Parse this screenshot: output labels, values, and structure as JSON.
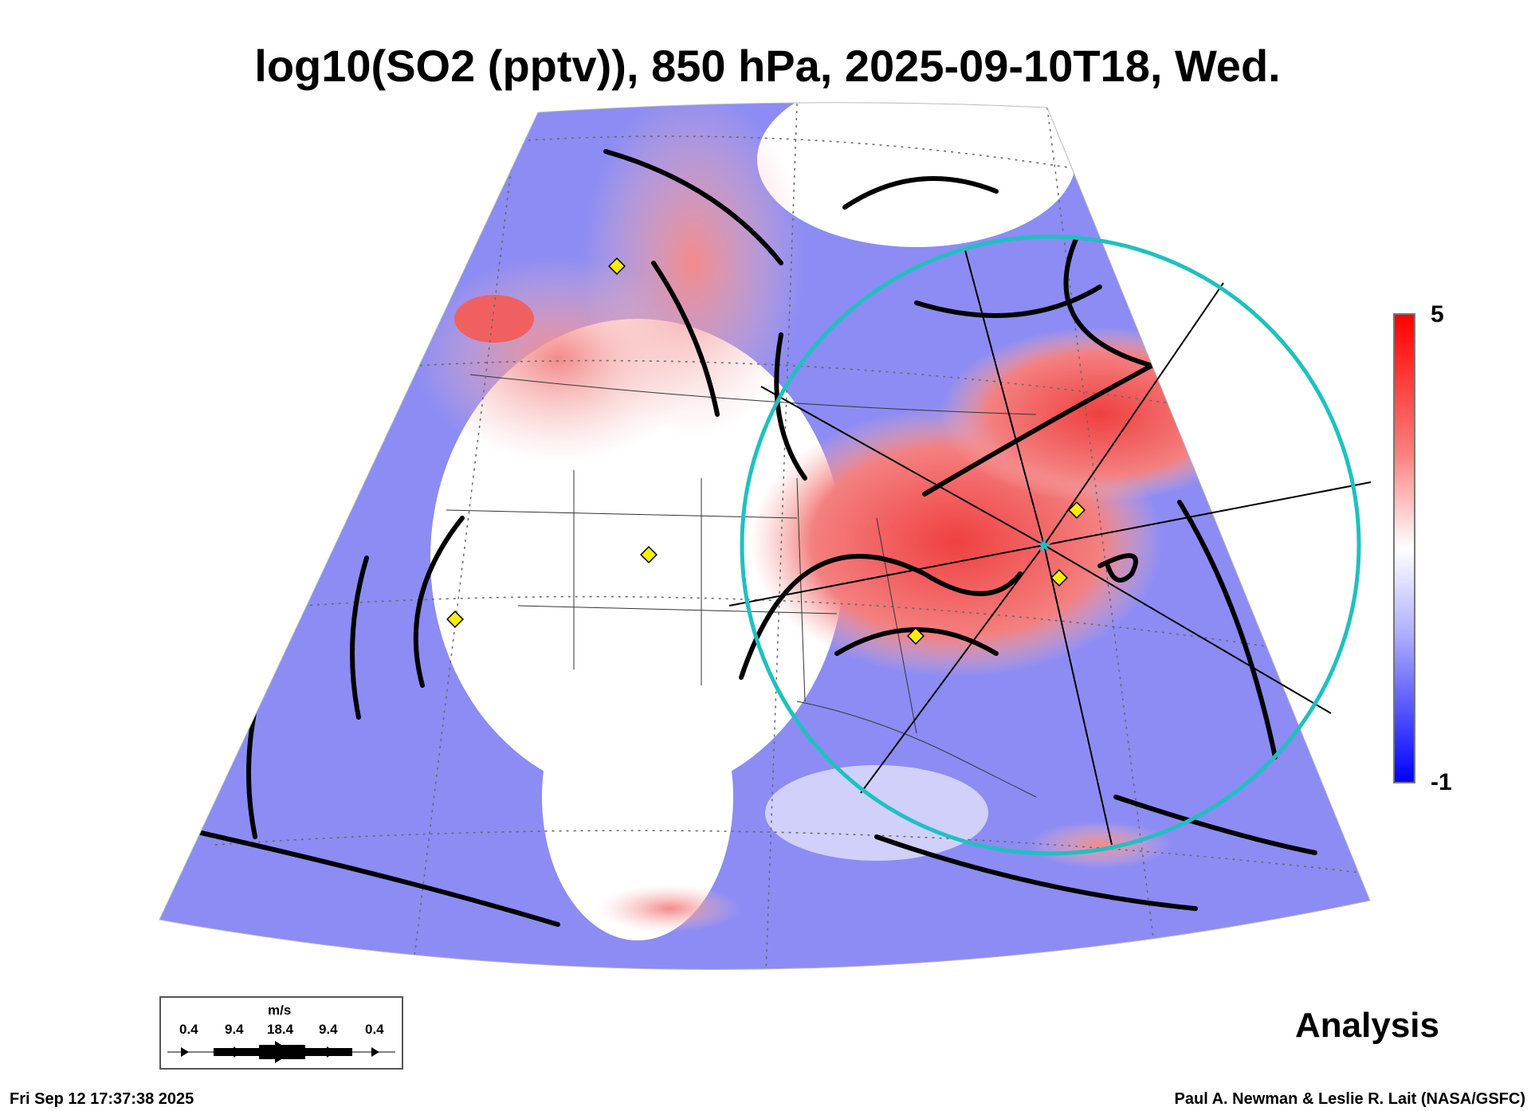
{
  "chart_data": {
    "type": "heatmap",
    "title": "log10(SO2 (pptv)), 850 hPa, 2025-09-10T18, Wed.",
    "variable": "log10(SO2 (pptv))",
    "level": "850 hPa",
    "valid_time": "2025-09-10T18",
    "colorbar": {
      "min": -1,
      "max": 5,
      "min_label": "-1",
      "max_label": "5",
      "colors": [
        "#0000ff",
        "#ffffff",
        "#ff0000"
      ]
    },
    "wind_legend": {
      "units": "m/s",
      "labels": [
        "0.4",
        "9.4",
        "18.4",
        "9.4",
        "0.4"
      ]
    },
    "product": "Analysis"
  },
  "footer": {
    "timestamp": "Fri Sep 12 17:37:38 2025",
    "credit": "Paul A. Newman & Leslie R. Lait (NASA/GSFC)"
  },
  "colors": {
    "circle": "#20c0c0",
    "marker": "#ffee00"
  }
}
